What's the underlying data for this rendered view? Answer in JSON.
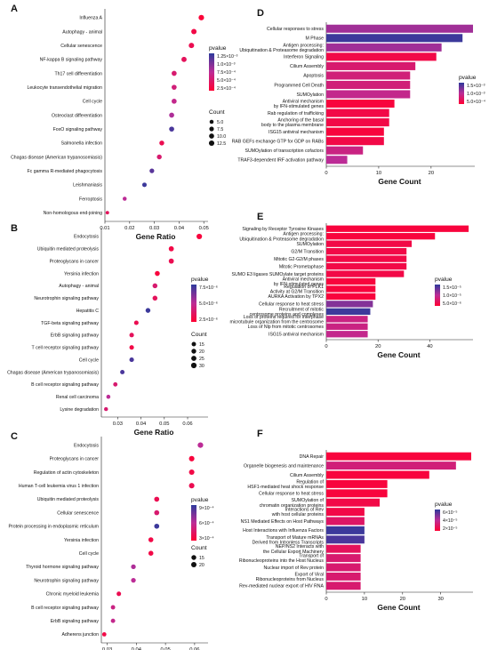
{
  "colors": {
    "high": "#ff0033",
    "low": "#2e3a9c"
  },
  "chart_data": [
    {
      "panel": "A",
      "type": "scatter",
      "xlabel": "Gene Ratio",
      "xlim": [
        0.01,
        0.051
      ],
      "xticks": [
        0.01,
        0.02,
        0.03,
        0.04,
        0.05
      ],
      "xtick_labels": [
        "0.01",
        "0.02",
        "0.03",
        "0.04",
        "0.05"
      ],
      "categories": [
        "Influenza A",
        "Autophagy - animal",
        "Cellular senescence",
        "NF-kappa B signaling pathway",
        "Th17 cell differentiation",
        "Leukocyte transendothelial migration",
        "Cell cycle",
        "Osteoclast differentiation",
        "FoxO signaling pathway",
        "Salmonella infection",
        "Chagas disease (American trypanosomiasis)",
        "Fc gamma R-mediated phagocytosis",
        "Leishmaniasis",
        "Ferroptosis",
        "Non-homologous end-joining"
      ],
      "x": [
        0.049,
        0.046,
        0.045,
        0.042,
        0.038,
        0.038,
        0.038,
        0.037,
        0.037,
        0.033,
        0.032,
        0.029,
        0.026,
        0.018,
        0.011
      ],
      "count": [
        13,
        12,
        12,
        11,
        10,
        10,
        10,
        10,
        10,
        9,
        9,
        8,
        7,
        5,
        3
      ],
      "color_value": [
        0.03,
        0.1,
        0.15,
        0.2,
        0.3,
        0.35,
        0.45,
        0.55,
        0.9,
        0.15,
        0.3,
        0.85,
        0.95,
        0.5,
        0.2
      ],
      "legend_color_title": "pvalue",
      "legend_color_labels": [
        "1.25×10⁻³",
        "1.0×10⁻³",
        "7.5×10⁻⁴",
        "5.0×10⁻⁴",
        "2.5×10⁻⁴"
      ],
      "legend_size_title": "Count",
      "legend_size_labels": [
        "5.0",
        "7.5",
        "10.0",
        "12.5"
      ],
      "legend_size_values": [
        5,
        7.5,
        10,
        12.5
      ]
    },
    {
      "panel": "B",
      "type": "scatter",
      "xlabel": "Gene Ratio",
      "xlim": [
        0.023,
        0.068
      ],
      "xticks": [
        0.03,
        0.04,
        0.05,
        0.06
      ],
      "xtick_labels": [
        "0.03",
        "0.04",
        "0.05",
        "0.06"
      ],
      "categories": [
        "Endocytosis",
        "Ubiquitin mediated proteolysis",
        "Proteoglycans in cancer",
        "Yersinia infection",
        "Autophagy - animal",
        "Neurotrophin signaling pathway",
        "Hepatitis C",
        "TGF-beta signaling pathway",
        "ErbB signaling pathway",
        "T cell receptor signaling pathway",
        "Cell cycle",
        "Chagas disease (American trypanosomiasis)",
        "B cell receptor signaling pathway",
        "Renal cell carcinoma",
        "Lysine degradation"
      ],
      "x": [
        0.065,
        0.053,
        0.053,
        0.047,
        0.046,
        0.046,
        0.043,
        0.038,
        0.036,
        0.036,
        0.036,
        0.032,
        0.029,
        0.026,
        0.025
      ],
      "count": [
        30,
        24,
        24,
        22,
        21,
        21,
        20,
        17,
        17,
        17,
        17,
        15,
        14,
        12,
        11
      ],
      "color_value": [
        0.05,
        0.1,
        0.15,
        0.05,
        0.3,
        0.2,
        0.95,
        0.15,
        0.2,
        0.1,
        0.9,
        0.9,
        0.3,
        0.5,
        0.3
      ],
      "legend_color_title": "pvalue",
      "legend_color_labels": [
        "7.5×10⁻⁶",
        "5.0×10⁻⁶",
        "2.5×10⁻⁶"
      ],
      "legend_size_title": "Count",
      "legend_size_labels": [
        "15",
        "20",
        "25",
        "30"
      ],
      "legend_size_values": [
        15,
        20,
        25,
        30
      ]
    },
    {
      "panel": "C",
      "type": "scatter",
      "xlabel": "Gene Ratio",
      "xlim": [
        0.028,
        0.064
      ],
      "xticks": [
        0.03,
        0.04,
        0.05,
        0.06
      ],
      "xtick_labels": [
        "0.03",
        "0.04",
        "0.05",
        "0.06"
      ],
      "categories": [
        "Endocytosis",
        "Proteoglycans in cancer",
        "Regulation of actin cytoskeleton",
        "Human T-cell leukemia virus 1 infection",
        "Ubiquitin mediated proteolysis",
        "Cellular senescence",
        "Protein processing in endoplasmic reticulum",
        "Yersinia infection",
        "Cell cycle",
        "Thyroid hormone signaling pathway",
        "Neurotrophin signaling pathway",
        "Chronic myeloid leukemia",
        "B cell receptor signaling pathway",
        "ErbB signaling pathway",
        "Adherens junction"
      ],
      "x": [
        0.062,
        0.059,
        0.059,
        0.059,
        0.047,
        0.047,
        0.047,
        0.045,
        0.045,
        0.039,
        0.039,
        0.034,
        0.032,
        0.032,
        0.029
      ],
      "count": [
        22,
        21,
        21,
        21,
        17,
        17,
        17,
        16,
        16,
        14,
        14,
        12,
        11,
        11,
        10
      ],
      "color_value": [
        0.5,
        0.05,
        0.1,
        0.15,
        0.15,
        0.3,
        0.95,
        0.1,
        0.1,
        0.55,
        0.5,
        0.15,
        0.4,
        0.45,
        0.1
      ],
      "legend_color_title": "pvalue",
      "legend_color_labels": [
        "9×10⁻⁴",
        "6×10⁻⁴",
        "3×10⁻⁴"
      ],
      "legend_size_title": "Count",
      "legend_size_labels": [
        "15",
        "20"
      ],
      "legend_size_values": [
        15,
        20
      ]
    },
    {
      "panel": "D",
      "type": "bar",
      "xlabel": "Gene Count",
      "xlim": [
        0,
        28
      ],
      "xticks": [
        0,
        10,
        20
      ],
      "xtick_labels": [
        "0",
        "10",
        "20"
      ],
      "categories": [
        "Cellular responses to stress",
        "M Phase",
        "Antigen processing: Ubiquitination & Proteasome degradation",
        "Interferon Signaling",
        "Cilium Assembly",
        "Apoptosis",
        "Programmed Cell Death",
        "SUMOylation",
        "Antiviral mechanism by IFN-stimulated genes",
        "Rab regulation of trafficking",
        "Anchoring of the basal body to the plasma membrane",
        "ISG15 antiviral mechanism",
        "RAB GEFs exchange GTP for GDP on RABs",
        "SUMOylation of transcription cofactors",
        "TRAF3-dependent IRF activation pathway"
      ],
      "values": [
        28,
        26,
        22,
        21,
        17,
        16,
        16,
        16,
        13,
        12,
        12,
        11,
        11,
        7,
        4
      ],
      "color_value": [
        0.6,
        0.95,
        0.6,
        0.1,
        0.3,
        0.35,
        0.35,
        0.45,
        0.05,
        0.1,
        0.1,
        0.05,
        0.1,
        0.4,
        0.5
      ],
      "legend_color_title": "pvalue",
      "legend_color_labels": [
        "1.5×10⁻³",
        "1.0×10⁻³",
        "5.0×10⁻⁴"
      ]
    },
    {
      "panel": "E",
      "type": "bar",
      "xlabel": "Gene Count",
      "xlim": [
        0,
        56
      ],
      "xticks": [
        0,
        20,
        40
      ],
      "xtick_labels": [
        "0",
        "20",
        "40"
      ],
      "categories": [
        "Signaling by Receptor Tyrosine Kinases",
        "Antigen processing: Ubiquitination & Proteasome degradation",
        "SUMOylation",
        "G2/M Transition",
        "Mitotic G2-G2/M phases",
        "Mitotic Prometaphase",
        "SUMO E3 ligases SUMOylate target proteins",
        "Antiviral mechanism by IFN-stimulated genes",
        "Regulation of PLK1 Activity at G2/M Transition",
        "AURKA Activation by TPX2",
        "Cellular response to heat stress",
        "Recruitment of mitotic centrosome proteins and complexes",
        "Loss of proteins required for interphase microtubule organization from the centrosome",
        "Loss of Nlp from mitotic centrosomes",
        "ISG15 antiviral mechanism"
      ],
      "values": [
        55,
        42,
        33,
        31,
        31,
        31,
        30,
        19,
        19,
        19,
        18,
        17,
        16,
        16,
        16
      ],
      "color_value": [
        0.05,
        0.05,
        0.1,
        0.1,
        0.1,
        0.1,
        0.1,
        0.05,
        0.05,
        0.05,
        0.7,
        0.95,
        0.4,
        0.4,
        0.45
      ],
      "legend_color_title": "pvalue",
      "legend_color_labels": [
        "1.5×10⁻⁵",
        "1.0×10⁻⁵",
        "5.0×10⁻⁶"
      ]
    },
    {
      "panel": "F",
      "type": "bar",
      "xlabel": "Gene Count",
      "xlim": [
        0,
        38
      ],
      "xticks": [
        0,
        10,
        20,
        30
      ],
      "xtick_labels": [
        "0",
        "10",
        "20",
        "30"
      ],
      "categories": [
        "DNA Repair",
        "Organelle biogenesis and maintenance",
        "Cilium Assembly",
        "Regulation of HSF1-mediated heat shock response",
        "Cellular response to heat stress",
        "SUMOylation of chromatin organization proteins",
        "Interactions of Rev with host cellular proteins",
        "NS1 Mediated Effects on Host Pathways",
        "Host Interactions with Influenza Factors",
        "Transport of Mature mRNAs Derived from Intronless Transcripts",
        "NEP/NS2 Interacts with the Cellular Export Machinery",
        "Transport of Ribonucleoproteins into the Host Nucleus",
        "Nuclear import of Rev protein",
        "Export of Viral Ribonucleoproteins from Nucleus",
        "Rev-mediated nuclear export of HIV RNA"
      ],
      "values": [
        38,
        34,
        27,
        16,
        16,
        14,
        10,
        10,
        10,
        10,
        9,
        9,
        9,
        9,
        9
      ],
      "color_value": [
        0.05,
        0.35,
        0.05,
        0.05,
        0.05,
        0.1,
        0.1,
        0.25,
        0.95,
        0.9,
        0.2,
        0.3,
        0.3,
        0.3,
        0.3
      ],
      "legend_color_title": "pvalue",
      "legend_color_labels": [
        "6×10⁻⁵",
        "4×10⁻⁵",
        "2×10⁻⁵"
      ]
    }
  ]
}
